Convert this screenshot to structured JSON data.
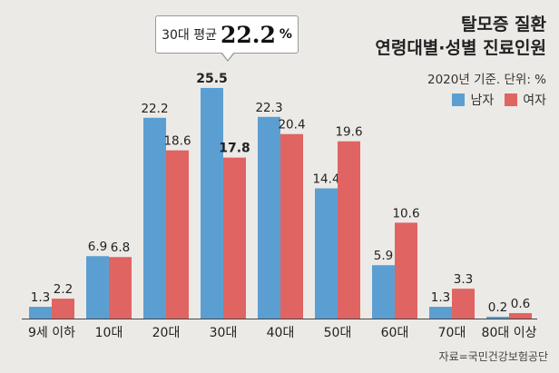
{
  "title_line1": "탈모증 질환",
  "title_line2": "연령대별·성별 진료인원",
  "subtitle": "2020년 기준. 단위: %",
  "source": "자료=국민건강보험공단",
  "callout": {
    "label": "30대 평균",
    "value": "22.2",
    "unit": "%"
  },
  "colors": {
    "male": "#5b9fd2",
    "female": "#e06462"
  },
  "chart_data": {
    "type": "bar",
    "categories": [
      "9세 이하",
      "10대",
      "20대",
      "30대",
      "40대",
      "50대",
      "60대",
      "70대",
      "80대 이상"
    ],
    "series": [
      {
        "name": "남자",
        "values": [
          1.3,
          6.9,
          22.2,
          25.5,
          22.3,
          14.4,
          5.9,
          1.3,
          0.2
        ]
      },
      {
        "name": "여자",
        "values": [
          2.2,
          6.8,
          18.6,
          17.8,
          20.4,
          19.6,
          10.6,
          3.3,
          0.6
        ]
      }
    ],
    "highlight_category": "30대",
    "ylim": [
      0,
      28
    ]
  }
}
